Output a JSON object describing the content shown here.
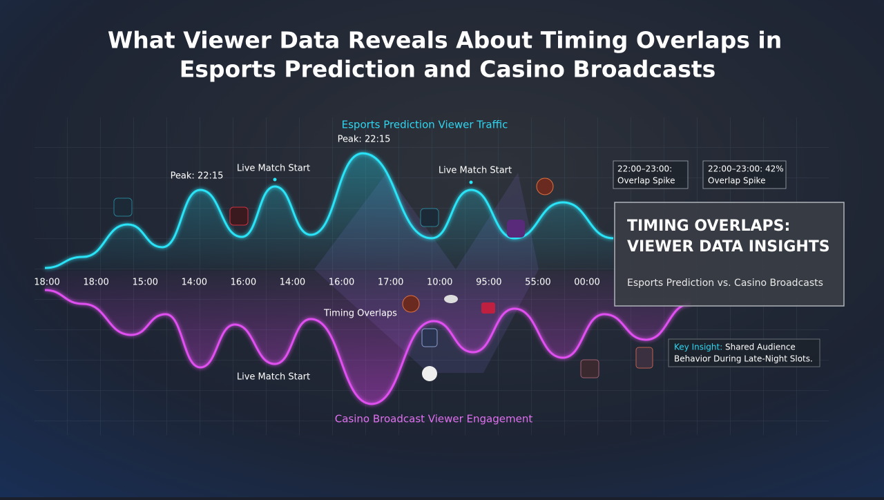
{
  "header": {
    "title_lines": [
      "What Viewer Data Reveals About Timing Overlaps in",
      "Esports Prediction and Casino Broadcasts"
    ]
  },
  "timeline": {
    "labels": [
      "18:00",
      "18:00",
      "15:00",
      "14:00",
      "16:00",
      "14:00",
      "16:00",
      "17:00",
      "10:00",
      "95:00",
      "55:00",
      "00:00"
    ]
  },
  "esports": {
    "label": "Esports Prediction Viewer Traffic",
    "annotations": [
      "Peak: 22:15",
      "Live Match Start",
      "Peak: 22:15",
      "Live Match Start"
    ]
  },
  "casino": {
    "label": "Casino Broadcast Viewer Engagement",
    "annotations": [
      "Timing Overlaps",
      "Live Match Start"
    ]
  },
  "callouts": [
    {
      "lines": [
        "22:00–23:00:",
        "Overlap Spike"
      ]
    },
    {
      "lines": [
        "22:00–23:00: 42%",
        "Overlap Spike"
      ]
    }
  ],
  "panel": {
    "title_lines": [
      "TIMING OVERLAPS:",
      "VIEWER DATA INSIGHTS"
    ],
    "subtitle": "Esports Prediction vs. Casino Broadcasts"
  },
  "insight": {
    "label": "Key Insight:",
    "lines": [
      "Shared Audience",
      "Behavior During Late-Night Slots."
    ]
  }
}
